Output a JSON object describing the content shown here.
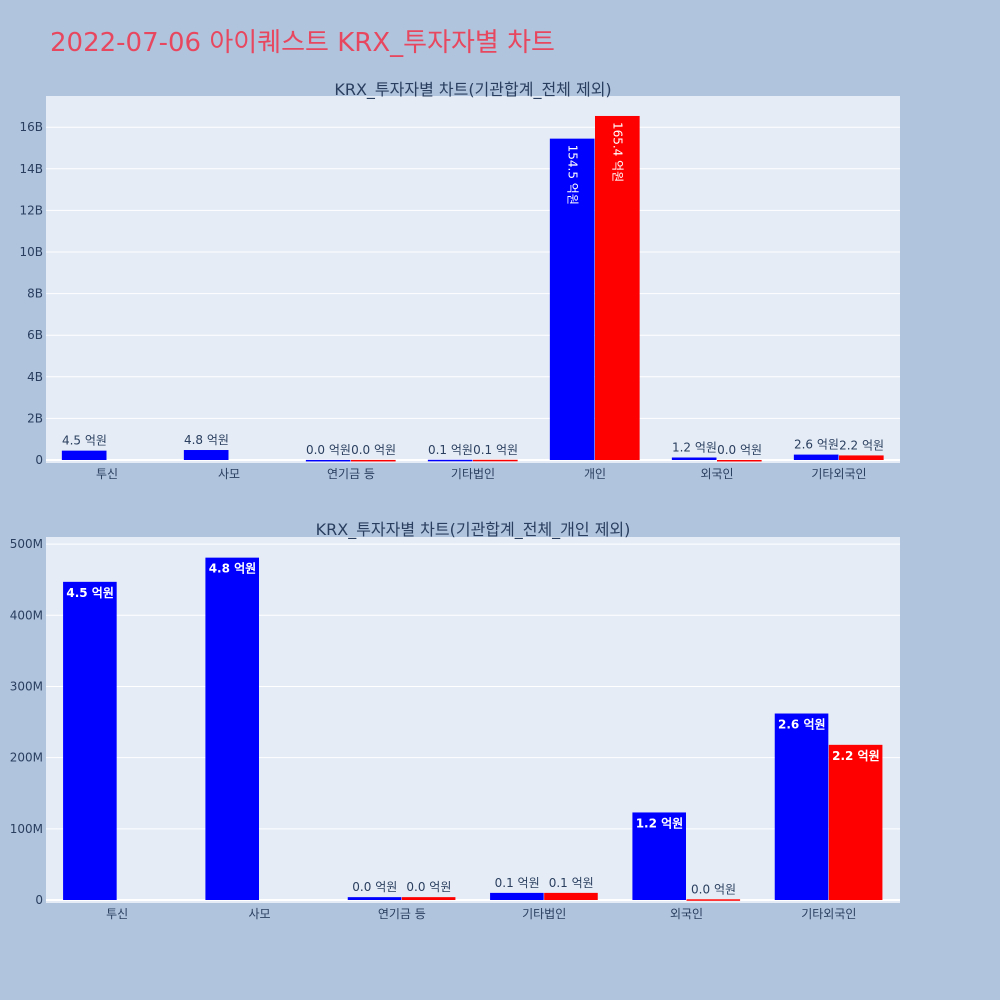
{
  "page": {
    "title": "2022-07-06 아이퀘스트 KRX_투자자별 차트"
  },
  "colors": {
    "series_a": "#0000ff",
    "series_b": "#ff0000",
    "plot_bg": "#e5ecf6",
    "page_bg": "#b0c4de",
    "title": "#e8485f"
  },
  "chart_data": [
    {
      "type": "bar",
      "title": "KRX_투자자별 차트(기관합계_전체 제외)",
      "categories": [
        "투신",
        "사모",
        "연기금 등",
        "기타법인",
        "개인",
        "외국인",
        "기타외국인"
      ],
      "ylim": [
        0,
        17500000000
      ],
      "yticks": [
        0,
        2000000000,
        4000000000,
        6000000000,
        8000000000,
        10000000000,
        12000000000,
        14000000000,
        16000000000
      ],
      "ytick_labels": [
        "0",
        "2B",
        "4B",
        "6B",
        "8B",
        "10B",
        "12B",
        "14B",
        "16B"
      ],
      "grid": true,
      "series": [
        {
          "color": "#0000ff",
          "values": [
            450000000,
            480000000,
            3000000,
            10000000,
            15450000000,
            120000000,
            260000000
          ],
          "labels": [
            "4.5 억원",
            "4.8 억원",
            "0.0 억원",
            "0.1 억원",
            "154.5 억원",
            "1.2 억원",
            "2.6 억원"
          ]
        },
        {
          "color": "#ff0000",
          "values": [
            0,
            0,
            3000000,
            10000000,
            16540000000,
            1000000,
            220000000
          ],
          "labels": [
            "",
            "",
            "0.0 억원",
            "0.1 억원",
            "165.4 억원",
            "0.0 억원",
            "2.2 억원"
          ]
        }
      ]
    },
    {
      "type": "bar",
      "title": "KRX_투자자별 차트(기관합계_전체_개인 제외)",
      "categories": [
        "투신",
        "사모",
        "연기금 등",
        "기타법인",
        "외국인",
        "기타외국인"
      ],
      "ylim": [
        0,
        510000000
      ],
      "yticks": [
        0,
        100000000,
        200000000,
        300000000,
        400000000,
        500000000
      ],
      "ytick_labels": [
        "0",
        "100M",
        "200M",
        "300M",
        "400M",
        "500M"
      ],
      "grid": true,
      "series": [
        {
          "color": "#0000ff",
          "values": [
            447000000,
            481000000,
            4000000,
            10000000,
            123000000,
            262000000
          ],
          "labels": [
            "4.5 억원",
            "4.8 억원",
            "0.0 억원",
            "0.1 억원",
            "1.2 억원",
            "2.6 억원"
          ]
        },
        {
          "color": "#ff0000",
          "values": [
            0,
            0,
            4000000,
            10000000,
            1000000,
            218000000
          ],
          "labels": [
            "",
            "",
            "0.0 억원",
            "0.1 억원",
            "0.0 억원",
            "2.2 억원"
          ]
        }
      ]
    }
  ]
}
